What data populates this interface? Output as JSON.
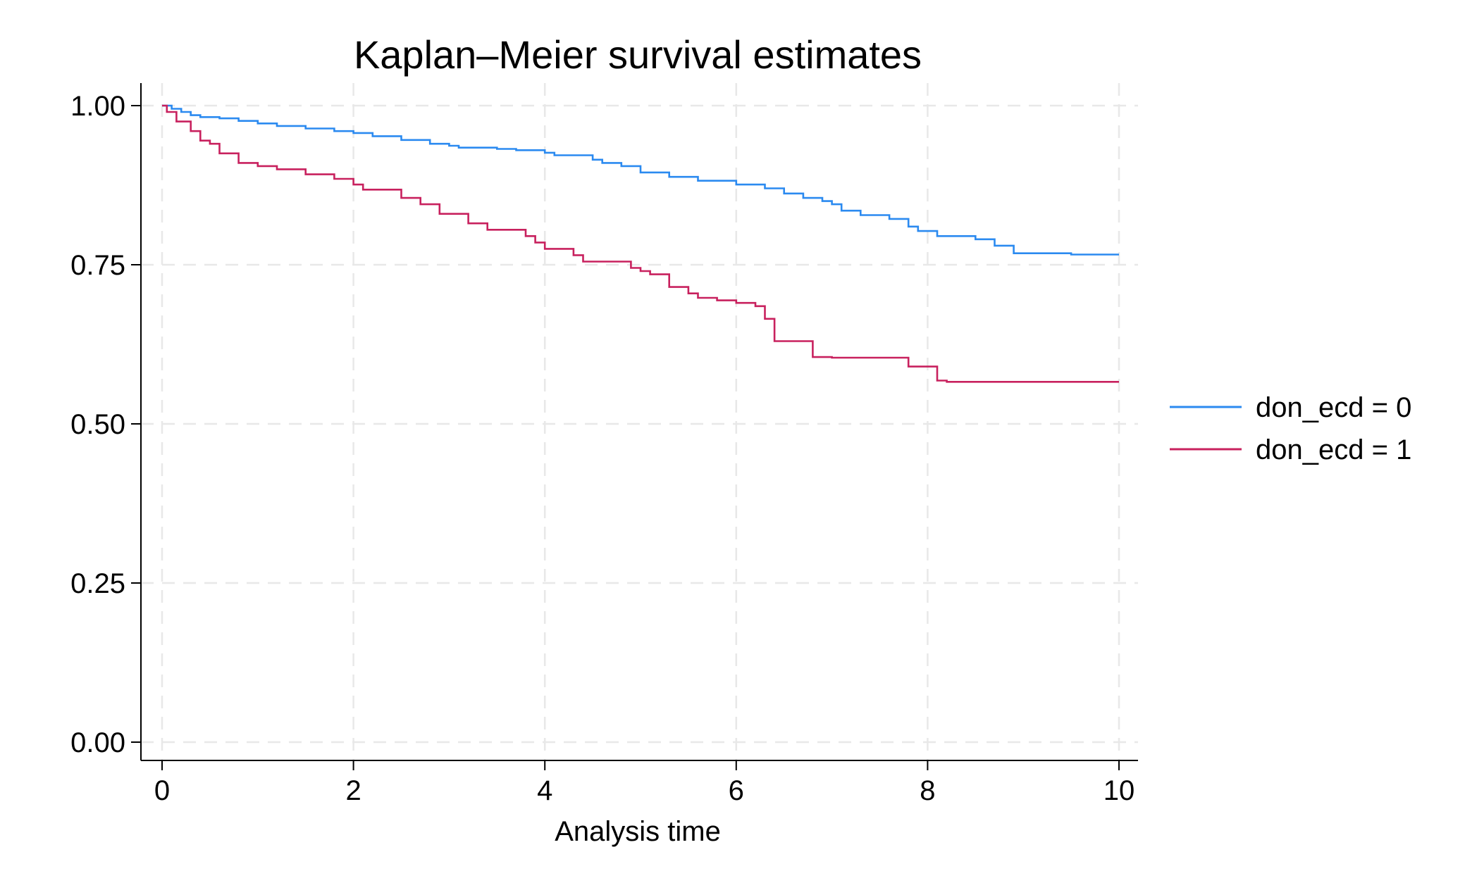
{
  "chart_data": {
    "type": "line",
    "step": true,
    "title": "Kaplan–Meier survival estimates",
    "xlabel": "Analysis time",
    "ylabel": "",
    "xlim": [
      0,
      10
    ],
    "ylim": [
      0,
      1
    ],
    "xticks": [
      0,
      2,
      4,
      6,
      8,
      10
    ],
    "xtick_labels": [
      "0",
      "2",
      "4",
      "6",
      "8",
      "10"
    ],
    "yticks": [
      0,
      0.25,
      0.5,
      0.75,
      1
    ],
    "ytick_labels": [
      "0.00",
      "0.25",
      "0.50",
      "0.75",
      "1.00"
    ],
    "grid": true,
    "legend_position": "right",
    "series": [
      {
        "name": "don_ecd = 0",
        "color": "#2b8af0",
        "x": [
          0,
          0.1,
          0.2,
          0.3,
          0.4,
          0.6,
          0.8,
          1.0,
          1.2,
          1.5,
          1.8,
          2.0,
          2.2,
          2.5,
          2.8,
          3.0,
          3.1,
          3.5,
          3.7,
          4.0,
          4.1,
          4.5,
          4.6,
          4.8,
          5.0,
          5.3,
          5.6,
          6.0,
          6.3,
          6.5,
          6.7,
          6.9,
          7.0,
          7.1,
          7.3,
          7.6,
          7.8,
          7.9,
          8.1,
          8.5,
          8.7,
          8.9,
          9.5,
          10.0
        ],
        "y": [
          1.0,
          0.995,
          0.99,
          0.985,
          0.982,
          0.98,
          0.976,
          0.972,
          0.968,
          0.964,
          0.96,
          0.957,
          0.952,
          0.946,
          0.94,
          0.937,
          0.934,
          0.932,
          0.93,
          0.926,
          0.922,
          0.915,
          0.91,
          0.905,
          0.895,
          0.888,
          0.882,
          0.876,
          0.87,
          0.862,
          0.855,
          0.85,
          0.845,
          0.835,
          0.828,
          0.822,
          0.81,
          0.803,
          0.795,
          0.79,
          0.78,
          0.768,
          0.766,
          0.766
        ]
      },
      {
        "name": "don_ecd = 1",
        "color": "#c8215e",
        "x": [
          0,
          0.05,
          0.15,
          0.3,
          0.4,
          0.5,
          0.6,
          0.8,
          1.0,
          1.2,
          1.5,
          1.8,
          2.0,
          2.1,
          2.5,
          2.7,
          2.9,
          3.2,
          3.4,
          3.8,
          3.9,
          4.0,
          4.3,
          4.4,
          4.9,
          5.0,
          5.1,
          5.3,
          5.5,
          5.6,
          5.8,
          6.0,
          6.2,
          6.3,
          6.4,
          6.8,
          7.0,
          7.8,
          8.1,
          8.2,
          9.5,
          10.0
        ],
        "y": [
          1.0,
          0.99,
          0.975,
          0.96,
          0.945,
          0.94,
          0.925,
          0.91,
          0.905,
          0.9,
          0.892,
          0.885,
          0.876,
          0.868,
          0.855,
          0.845,
          0.83,
          0.815,
          0.805,
          0.795,
          0.785,
          0.775,
          0.765,
          0.755,
          0.745,
          0.74,
          0.735,
          0.715,
          0.705,
          0.698,
          0.694,
          0.69,
          0.685,
          0.665,
          0.63,
          0.605,
          0.604,
          0.59,
          0.568,
          0.566,
          0.566,
          0.566
        ]
      }
    ]
  }
}
